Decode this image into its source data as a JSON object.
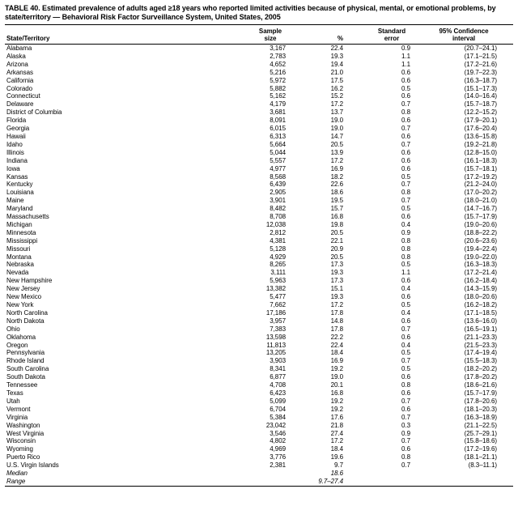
{
  "table": {
    "title": "TABLE 40. Estimated prevalence of adults aged ≥18 years who reported limited activities because of physical, mental, or emotional problems, by state/territory — Behavioral Risk Factor Surveillance System, United States, 2005",
    "columns": [
      "State/Territory",
      "Sample size",
      "%",
      "Standard error",
      "95% Confidence interval"
    ],
    "rows": [
      {
        "state": "Alabama",
        "sample": "3,167",
        "pct": "22.4",
        "se": "0.9",
        "ci": "(20.7–24.1)"
      },
      {
        "state": "Alaska",
        "sample": "2,783",
        "pct": "19.3",
        "se": "1.1",
        "ci": "(17.1–21.5)"
      },
      {
        "state": "Arizona",
        "sample": "4,652",
        "pct": "19.4",
        "se": "1.1",
        "ci": "(17.2–21.6)"
      },
      {
        "state": "Arkansas",
        "sample": "5,216",
        "pct": "21.0",
        "se": "0.6",
        "ci": "(19.7–22.3)"
      },
      {
        "state": "California",
        "sample": "5,972",
        "pct": "17.5",
        "se": "0.6",
        "ci": "(16.3–18.7)"
      },
      {
        "state": "Colorado",
        "sample": "5,882",
        "pct": "16.2",
        "se": "0.5",
        "ci": "(15.1–17.3)"
      },
      {
        "state": "Connecticut",
        "sample": "5,162",
        "pct": "15.2",
        "se": "0.6",
        "ci": "(14.0–16.4)"
      },
      {
        "state": "Delaware",
        "sample": "4,179",
        "pct": "17.2",
        "se": "0.7",
        "ci": "(15.7–18.7)"
      },
      {
        "state": "District of Columbia",
        "sample": "3,681",
        "pct": "13.7",
        "se": "0.8",
        "ci": "(12.2–15.2)"
      },
      {
        "state": "Florida",
        "sample": "8,091",
        "pct": "19.0",
        "se": "0.6",
        "ci": "(17.9–20.1)"
      },
      {
        "state": "Georgia",
        "sample": "6,015",
        "pct": "19.0",
        "se": "0.7",
        "ci": "(17.6–20.4)"
      },
      {
        "state": "Hawaii",
        "sample": "6,313",
        "pct": "14.7",
        "se": "0.6",
        "ci": "(13.6–15.8)"
      },
      {
        "state": "Idaho",
        "sample": "5,664",
        "pct": "20.5",
        "se": "0.7",
        "ci": "(19.2–21.8)"
      },
      {
        "state": "Illinois",
        "sample": "5,044",
        "pct": "13.9",
        "se": "0.6",
        "ci": "(12.8–15.0)"
      },
      {
        "state": "Indiana",
        "sample": "5,557",
        "pct": "17.2",
        "se": "0.6",
        "ci": "(16.1–18.3)"
      },
      {
        "state": "Iowa",
        "sample": "4,977",
        "pct": "16.9",
        "se": "0.6",
        "ci": "(15.7–18.1)"
      },
      {
        "state": "Kansas",
        "sample": "8,568",
        "pct": "18.2",
        "se": "0.5",
        "ci": "(17.2–19.2)"
      },
      {
        "state": "Kentucky",
        "sample": "6,439",
        "pct": "22.6",
        "se": "0.7",
        "ci": "(21.2–24.0)"
      },
      {
        "state": "Louisiana",
        "sample": "2,905",
        "pct": "18.6",
        "se": "0.8",
        "ci": "(17.0–20.2)"
      },
      {
        "state": "Maine",
        "sample": "3,901",
        "pct": "19.5",
        "se": "0.7",
        "ci": "(18.0–21.0)"
      },
      {
        "state": "Maryland",
        "sample": "8,482",
        "pct": "15.7",
        "se": "0.5",
        "ci": "(14.7–16.7)"
      },
      {
        "state": "Massachusetts",
        "sample": "8,708",
        "pct": "16.8",
        "se": "0.6",
        "ci": "(15.7–17.9)"
      },
      {
        "state": "Michigan",
        "sample": "12,038",
        "pct": "19.8",
        "se": "0.4",
        "ci": "(19.0–20.6)"
      },
      {
        "state": "Minnesota",
        "sample": "2,812",
        "pct": "20.5",
        "se": "0.9",
        "ci": "(18.8–22.2)"
      },
      {
        "state": "Mississippi",
        "sample": "4,381",
        "pct": "22.1",
        "se": "0.8",
        "ci": "(20.6–23.6)"
      },
      {
        "state": "Missouri",
        "sample": "5,128",
        "pct": "20.9",
        "se": "0.8",
        "ci": "(19.4–22.4)"
      },
      {
        "state": "Montana",
        "sample": "4,929",
        "pct": "20.5",
        "se": "0.8",
        "ci": "(19.0–22.0)"
      },
      {
        "state": "Nebraska",
        "sample": "8,265",
        "pct": "17.3",
        "se": "0.5",
        "ci": "(16.3–18.3)"
      },
      {
        "state": "Nevada",
        "sample": "3,111",
        "pct": "19.3",
        "se": "1.1",
        "ci": "(17.2–21.4)"
      },
      {
        "state": "New Hampshire",
        "sample": "5,963",
        "pct": "17.3",
        "se": "0.6",
        "ci": "(16.2–18.4)"
      },
      {
        "state": "New Jersey",
        "sample": "13,382",
        "pct": "15.1",
        "se": "0.4",
        "ci": "(14.3–15.9)"
      },
      {
        "state": "New Mexico",
        "sample": "5,477",
        "pct": "19.3",
        "se": "0.6",
        "ci": "(18.0–20.6)"
      },
      {
        "state": "New York",
        "sample": "7,662",
        "pct": "17.2",
        "se": "0.5",
        "ci": "(16.2–18.2)"
      },
      {
        "state": "North Carolina",
        "sample": "17,186",
        "pct": "17.8",
        "se": "0.4",
        "ci": "(17.1–18.5)"
      },
      {
        "state": "North Dakota",
        "sample": "3,957",
        "pct": "14.8",
        "se": "0.6",
        "ci": "(13.6–16.0)"
      },
      {
        "state": "Ohio",
        "sample": "7,383",
        "pct": "17.8",
        "se": "0.7",
        "ci": "(16.5–19.1)"
      },
      {
        "state": "Oklahoma",
        "sample": "13,598",
        "pct": "22.2",
        "se": "0.6",
        "ci": "(21.1–23.3)"
      },
      {
        "state": "Oregon",
        "sample": "11,813",
        "pct": "22.4",
        "se": "0.4",
        "ci": "(21.5–23.3)"
      },
      {
        "state": "Pennsylvania",
        "sample": "13,205",
        "pct": "18.4",
        "se": "0.5",
        "ci": "(17.4–19.4)"
      },
      {
        "state": "Rhode Island",
        "sample": "3,903",
        "pct": "16.9",
        "se": "0.7",
        "ci": "(15.5–18.3)"
      },
      {
        "state": "South Carolina",
        "sample": "8,341",
        "pct": "19.2",
        "se": "0.5",
        "ci": "(18.2–20.2)"
      },
      {
        "state": "South Dakota",
        "sample": "6,877",
        "pct": "19.0",
        "se": "0.6",
        "ci": "(17.8–20.2)"
      },
      {
        "state": "Tennessee",
        "sample": "4,708",
        "pct": "20.1",
        "se": "0.8",
        "ci": "(18.6–21.6)"
      },
      {
        "state": "Texas",
        "sample": "6,423",
        "pct": "16.8",
        "se": "0.6",
        "ci": "(15.7–17.9)"
      },
      {
        "state": "Utah",
        "sample": "5,099",
        "pct": "19.2",
        "se": "0.7",
        "ci": "(17.8–20.6)"
      },
      {
        "state": "Vermont",
        "sample": "6,704",
        "pct": "19.2",
        "se": "0.6",
        "ci": "(18.1–20.3)"
      },
      {
        "state": "Virginia",
        "sample": "5,384",
        "pct": "17.6",
        "se": "0.7",
        "ci": "(16.3–18.9)"
      },
      {
        "state": "Washington",
        "sample": "23,042",
        "pct": "21.8",
        "se": "0.3",
        "ci": "(21.1–22.5)"
      },
      {
        "state": "West Virginia",
        "sample": "3,546",
        "pct": "27.4",
        "se": "0.9",
        "ci": "(25.7–29.1)"
      },
      {
        "state": "Wisconsin",
        "sample": "4,802",
        "pct": "17.2",
        "se": "0.7",
        "ci": "(15.8–18.6)"
      },
      {
        "state": "Wyoming",
        "sample": "4,969",
        "pct": "18.4",
        "se": "0.6",
        "ci": "(17.2–19.6)"
      },
      {
        "state": "Puerto Rico",
        "sample": "3,776",
        "pct": "19.6",
        "se": "0.8",
        "ci": "(18.1–21.1)"
      },
      {
        "state": "U.S. Virgin Islands",
        "sample": "2,381",
        "pct": "9.7",
        "se": "0.7",
        "ci": "(8.3–11.1)"
      }
    ],
    "summary_rows": [
      {
        "label": "Median",
        "pct": "18.6"
      },
      {
        "label": "Range",
        "pct": "9.7–27.4"
      }
    ]
  }
}
